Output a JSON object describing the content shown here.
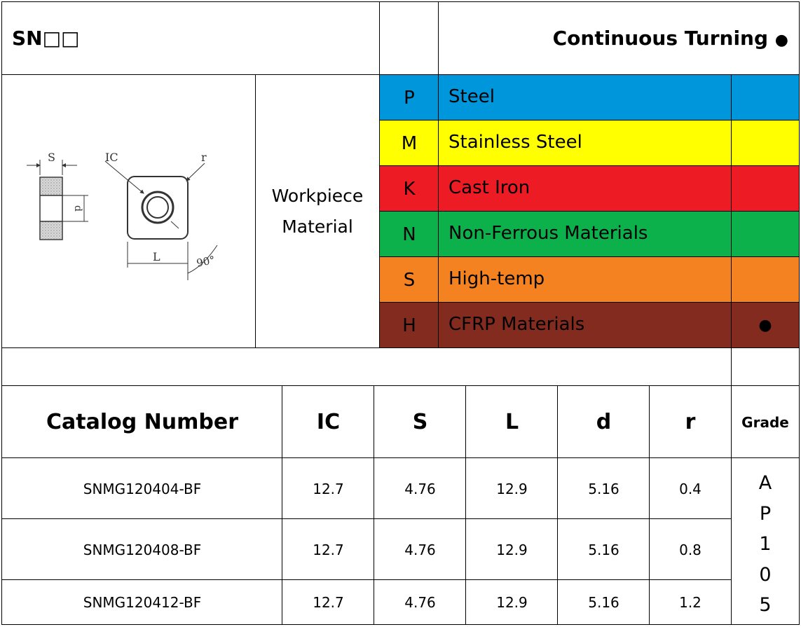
{
  "header": {
    "series": "SN□□",
    "operation": "Continuous Turning",
    "operation_marker": "●"
  },
  "workpiece": {
    "label_line1": "Workpiece",
    "label_line2": "Material"
  },
  "materials": [
    {
      "code": "P",
      "name": "Steel",
      "color": "#0096DC",
      "mark": ""
    },
    {
      "code": "M",
      "name": "Stainless Steel",
      "color": "#FFFF00",
      "mark": ""
    },
    {
      "code": "K",
      "name": "Cast Iron",
      "color": "#ED1C24",
      "mark": ""
    },
    {
      "code": "N",
      "name": "Non-Ferrous Materials",
      "color": "#0DB14B",
      "mark": ""
    },
    {
      "code": "S",
      "name": "High-temp",
      "color": "#F58220",
      "mark": ""
    },
    {
      "code": "H",
      "name": "CFRP Materials",
      "color": "#822B1E",
      "mark": "●"
    }
  ],
  "diagram": {
    "label_s": "S",
    "label_ic": "IC",
    "label_r": "r",
    "label_d": "d",
    "label_l": "L",
    "label_angle": "90°"
  },
  "table": {
    "headers": [
      "Catalog Number",
      "IC",
      "S",
      "L",
      "d",
      "r"
    ],
    "grade_header": "Grade",
    "rows": [
      [
        "SNMG120404-BF",
        "12.7",
        "4.76",
        "12.9",
        "5.16",
        "0.4"
      ],
      [
        "SNMG120408-BF",
        "12.7",
        "4.76",
        "12.9",
        "5.16",
        "0.8"
      ],
      [
        "SNMG120412-BF",
        "12.7",
        "4.76",
        "12.9",
        "5.16",
        "1.2"
      ]
    ],
    "grade_letters": [
      "A",
      "P",
      "1",
      "0",
      "5"
    ]
  }
}
